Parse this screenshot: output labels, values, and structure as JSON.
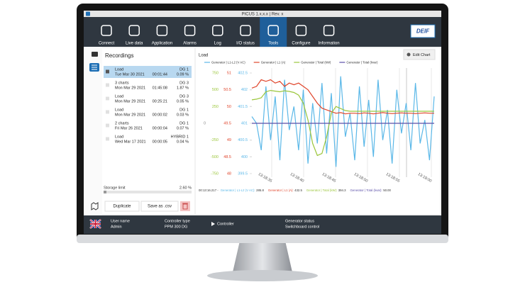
{
  "window": {
    "title": "PICUS 1.x.x.x | Rev. x",
    "logo": "DEIF"
  },
  "nav": {
    "active": "Tools",
    "tabs": [
      "Connect",
      "Live data",
      "Application",
      "Alarms",
      "Log",
      "I/O status",
      "Tools",
      "Configure",
      "Information"
    ]
  },
  "recordings": {
    "title": "Recordings",
    "items": [
      {
        "name": "Load",
        "date": "Tue Mar 30 2021",
        "controller": "DG 1",
        "duration": "00:01:44",
        "size": "0.09 %"
      },
      {
        "name": "3 charts",
        "date": "Mon Mar 29 2021",
        "controller": "DG 3",
        "duration": "01:45:08",
        "size": "1.87 %"
      },
      {
        "name": "Load",
        "date": "Mon Mar 29 2021",
        "controller": "DG 3",
        "duration": "00:25:21",
        "size": "0.05 %"
      },
      {
        "name": "Load",
        "date": "Mon Mar 29 2021",
        "controller": "DG 1",
        "duration": "00:00:02",
        "size": "0.03 %"
      },
      {
        "name": "2 charts",
        "date": "Fri Mar 26 2021",
        "controller": "DG 1",
        "duration": "00:00:04",
        "size": "0.07 %"
      },
      {
        "name": "Load",
        "date": "Wed Mar 17 2021",
        "controller": "HYBRID 1",
        "duration": "00:00:05",
        "size": "0.04 %"
      }
    ],
    "selected": "Tue Mar 30 2021",
    "storage_label": "Storage limit",
    "storage_value": "2.60 %",
    "buttons": [
      "Duplicate",
      "Save as .csv"
    ]
  },
  "chart": {
    "title": "Load",
    "edit_button": "Edit Chart",
    "x_ticks": [
      "13:18:35",
      "13:18:40",
      "13:18:45",
      "13:18:50",
      "13:18:55",
      "13:19:00"
    ],
    "axes": {
      "kvar": {
        "color": "#8a8a8a",
        "ylim": [
          -750,
          750
        ],
        "yticks": [
          0
        ]
      },
      "kw": {
        "color": "#9bc63b",
        "ylim": [
          -750,
          750
        ],
        "yticks": [
          750,
          500,
          250,
          -250,
          -500,
          -750
        ]
      },
      "a": {
        "color": "#e0452b",
        "ylim": [
          48,
          51
        ],
        "yticks": [
          51,
          50.5,
          50,
          49.5,
          49,
          48.5,
          48
        ]
      },
      "v": {
        "color": "#5bb8e8",
        "ylim": [
          399.5,
          402.5
        ],
        "yticks": [
          402.5,
          402,
          401.5,
          401,
          400.5,
          400,
          399.5
        ]
      }
    },
    "series": [
      {
        "name": "Generator | L1-L2 (V AC)",
        "color": "#5bb8e8",
        "axis": "v",
        "values": [
          401.2,
          401.0,
          400.2,
          402.1,
          400.5,
          401.8,
          399.9,
          402.3,
          400.8,
          401.5,
          400.2,
          402.0,
          399.8,
          401.6,
          400.4,
          402.2,
          400.1,
          401.9,
          399.7,
          402.4,
          400.6,
          401.3,
          399.9,
          402.1,
          400.3,
          401.7,
          400.0,
          402.3,
          400.5,
          401.4,
          399.8,
          402.0,
          400.7,
          401.6,
          400.2,
          402.2,
          400.4,
          401.1,
          399.9,
          401.8
        ]
      },
      {
        "name": "Generator | L1 (A)",
        "color": "#e0452b",
        "axis": "a",
        "values": [
          50.55,
          50.6,
          50.8,
          50.75,
          50.8,
          50.7,
          50.75,
          50.6,
          50.7,
          50.65,
          50.7,
          50.6,
          50.5,
          50.3,
          50.1,
          49.95,
          49.9,
          49.85,
          49.8,
          49.82,
          49.78,
          49.8,
          49.8,
          49.79,
          49.81,
          49.8,
          49.78,
          49.8,
          49.82,
          49.8,
          49.79,
          49.8,
          49.81,
          49.8,
          49.8,
          49.79,
          49.8,
          49.81,
          49.8,
          49.8
        ]
      },
      {
        "name": "Generator | Total (kW)",
        "color": "#9bc63b",
        "axis": "kw",
        "values": [
          350,
          360,
          380,
          470,
          490,
          480,
          470,
          485,
          475,
          460,
          420,
          300,
          50,
          -300,
          -480,
          -450,
          -200,
          150,
          250,
          220,
          190,
          180,
          180,
          180,
          180,
          180,
          180,
          180,
          180,
          180,
          180,
          180,
          180,
          180,
          180,
          180,
          180,
          180,
          180,
          180
        ]
      },
      {
        "name": "Generator | Total (kvar)",
        "color": "#5b4fa8",
        "axis": "kvar",
        "values": [
          0,
          0,
          0,
          0,
          0,
          0,
          0,
          0,
          0,
          0,
          0,
          0,
          0,
          0,
          0,
          0,
          0,
          0,
          0,
          0,
          0,
          0,
          0,
          0,
          0,
          0,
          0,
          0,
          0,
          0,
          0,
          0,
          0,
          0,
          0,
          0,
          0,
          0,
          0,
          0
        ]
      }
    ],
    "readout": {
      "time": "00:13:16.217 -",
      "items": [
        {
          "label": "Generator | L1-L2 (V AC):",
          "value": "285.8"
        },
        {
          "label": "Generator | L1 (A):",
          "value": "432.5"
        },
        {
          "label": "Generator | Total (kW):",
          "value": "394.3"
        },
        {
          "label": "Generator | Total (kvar):",
          "value": "50.00"
        }
      ]
    }
  },
  "status": {
    "user_label": "User name",
    "user": "Admin",
    "ctype_label": "Controller type",
    "ctype": "PPM 300 DG",
    "controller": "Controller",
    "gen_label": "Generator status",
    "gen": "Switchboard control"
  }
}
